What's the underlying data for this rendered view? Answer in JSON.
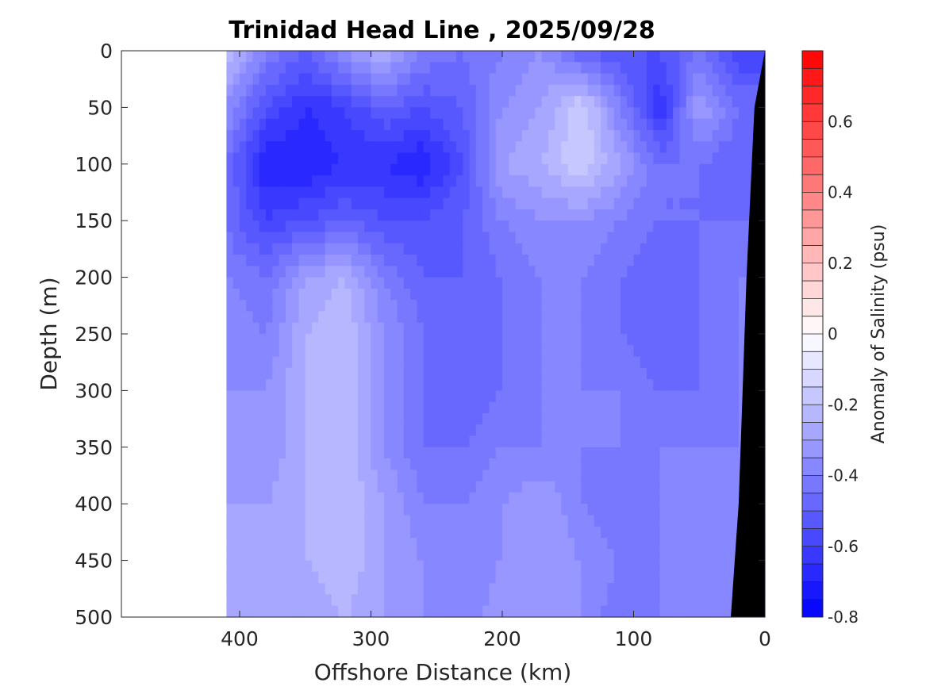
{
  "chart_data": {
    "type": "heatmap",
    "title": "Trinidad Head Line , 2025/09/28",
    "xlabel": "Offshore Distance (km)",
    "ylabel": "Depth (m)",
    "xlim": [
      490,
      0
    ],
    "ylim": [
      0,
      500
    ],
    "x_reversed": true,
    "y_reversed": true,
    "xticks": [
      "400",
      "300",
      "200",
      "100",
      "0"
    ],
    "yticks": [
      "0",
      "50",
      "100",
      "150",
      "200",
      "250",
      "300",
      "350",
      "400",
      "450",
      "500"
    ],
    "colorbar": {
      "label": "Anomaly of Salinity (psu)",
      "range": [
        -0.8,
        0.8
      ],
      "ticks": [
        "0.6",
        "0.4",
        "0.2",
        "0",
        "-0.2",
        "-0.4",
        "-0.6",
        "-0.8"
      ],
      "colormap": "blue-white-red",
      "colors": {
        "low": "#0000ff",
        "mid": "#ffffff",
        "high": "#ff0000"
      }
    },
    "data_extent_km": [
      410,
      0
    ],
    "columns_x": [
      410,
      380,
      350,
      320,
      290,
      260,
      230,
      200,
      170,
      140,
      110,
      80,
      50,
      20
    ],
    "rows_depth": [
      0,
      50,
      100,
      150,
      200,
      250,
      300,
      350,
      400,
      450,
      500
    ],
    "values": [
      [
        -0.2,
        -0.4,
        -0.5,
        -0.35,
        -0.25,
        -0.4,
        -0.45,
        -0.4,
        -0.35,
        -0.5,
        -0.55,
        -0.55,
        -0.45,
        -0.6
      ],
      [
        -0.35,
        -0.55,
        -0.65,
        -0.6,
        -0.5,
        -0.55,
        -0.5,
        -0.35,
        -0.3,
        -0.15,
        -0.4,
        -0.65,
        -0.3,
        -0.45
      ],
      [
        -0.45,
        -0.7,
        -0.7,
        -0.65,
        -0.65,
        -0.7,
        -0.55,
        -0.3,
        -0.25,
        -0.15,
        -0.3,
        -0.45,
        -0.45,
        -0.5
      ],
      [
        -0.45,
        -0.6,
        -0.55,
        -0.5,
        -0.55,
        -0.55,
        -0.5,
        -0.4,
        -0.35,
        -0.35,
        -0.4,
        -0.45,
        -0.45,
        -0.45
      ],
      [
        -0.4,
        -0.45,
        -0.3,
        -0.25,
        -0.4,
        -0.5,
        -0.5,
        -0.45,
        -0.4,
        -0.4,
        -0.45,
        -0.5,
        -0.45,
        -0.4
      ],
      [
        -0.35,
        -0.4,
        -0.25,
        -0.2,
        -0.35,
        -0.45,
        -0.5,
        -0.45,
        -0.4,
        -0.4,
        -0.45,
        -0.5,
        -0.45,
        -0.4
      ],
      [
        -0.35,
        -0.35,
        -0.25,
        -0.2,
        -0.35,
        -0.45,
        -0.5,
        -0.45,
        -0.4,
        -0.4,
        -0.4,
        -0.45,
        -0.45,
        -0.4
      ],
      [
        -0.3,
        -0.35,
        -0.25,
        -0.2,
        -0.35,
        -0.45,
        -0.45,
        -0.4,
        -0.4,
        -0.4,
        -0.4,
        -0.4,
        -0.4,
        -0.4
      ],
      [
        -0.3,
        -0.3,
        -0.25,
        -0.2,
        -0.3,
        -0.4,
        -0.4,
        -0.35,
        -0.3,
        -0.4,
        -0.45,
        -0.4,
        -0.4,
        -0.4
      ],
      [
        -0.25,
        -0.3,
        -0.25,
        -0.2,
        -0.3,
        -0.35,
        -0.4,
        -0.35,
        -0.3,
        -0.35,
        -0.4,
        -0.4,
        -0.35,
        -0.4
      ],
      [
        -0.25,
        -0.3,
        -0.3,
        -0.25,
        -0.3,
        -0.35,
        -0.4,
        -0.3,
        -0.3,
        -0.35,
        -0.45,
        -0.4,
        -0.35,
        -0.4
      ]
    ],
    "bathymetry": [
      [
        0,
        0
      ],
      [
        8,
        50
      ],
      [
        10,
        100
      ],
      [
        14,
        200
      ],
      [
        17,
        300
      ],
      [
        20,
        400
      ],
      [
        26,
        500
      ]
    ],
    "bathymetry_color": "#000000",
    "grid": false
  }
}
